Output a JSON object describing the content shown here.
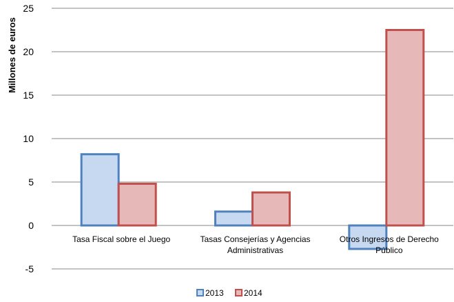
{
  "chart_data": {
    "type": "bar",
    "title": "",
    "xlabel": "",
    "ylabel": "Millones de euros",
    "ylim": [
      -5,
      25
    ],
    "yticks": [
      -5,
      0,
      5,
      10,
      15,
      20,
      25
    ],
    "grid": true,
    "legend_position": "bottom",
    "categories": [
      [
        "Tasa Fiscal sobre el Juego"
      ],
      [
        "Tasas Consejerías y Agencias",
        "Administrativas"
      ],
      [
        "Otros Ingresos de Derecho",
        "Público"
      ]
    ],
    "series": [
      {
        "name": "2013",
        "values": [
          8.2,
          1.6,
          -2.7
        ],
        "fill": "#c6d9f1",
        "stroke": "#4f81bd"
      },
      {
        "name": "2014",
        "values": [
          4.8,
          3.8,
          22.5
        ],
        "fill": "#e6b9b8",
        "stroke": "#c0504d"
      }
    ]
  }
}
